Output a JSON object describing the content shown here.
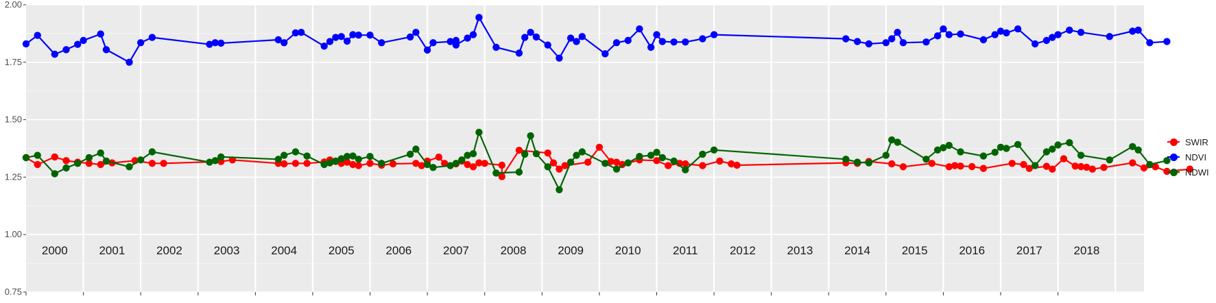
{
  "colors": {
    "panel": "#ebebeb",
    "grid_major": "#ffffff",
    "grid_minor": "#f5f5f5",
    "tick": "#333333"
  },
  "chart_data": {
    "type": "line",
    "ylim": [
      0.75,
      2.0
    ],
    "y_ticks": [
      "0.75",
      "1.00",
      "1.25",
      "1.50",
      "1.75",
      "2.00"
    ],
    "y_tick_values": [
      0.75,
      1.0,
      1.25,
      1.5,
      1.75,
      2.0
    ],
    "xlim": [
      1999.5,
      2019.0
    ],
    "x_labels": [
      "2000",
      "2001",
      "2002",
      "2003",
      "2004",
      "2005",
      "2006",
      "2007",
      "2008",
      "2009",
      "2010",
      "2011",
      "2012",
      "2013",
      "2014",
      "2015",
      "2016",
      "2017",
      "2018"
    ],
    "grid": true,
    "legend_position": "right",
    "series": [
      {
        "name": "SWIR",
        "color": "#ff0000",
        "points": [
          [
            1999.5,
            1.335
          ],
          [
            1999.7,
            1.305
          ],
          [
            2000.0,
            1.338
          ],
          [
            2000.2,
            1.322
          ],
          [
            2000.4,
            1.315
          ],
          [
            2000.6,
            1.31
          ],
          [
            2000.8,
            1.305
          ],
          [
            2001.0,
            1.312
          ],
          [
            2001.4,
            1.322
          ],
          [
            2001.7,
            1.31
          ],
          [
            2001.9,
            1.31
          ],
          [
            2002.9,
            1.318
          ],
          [
            2003.1,
            1.325
          ],
          [
            2003.9,
            1.31
          ],
          [
            2004.0,
            1.308
          ],
          [
            2004.2,
            1.31
          ],
          [
            2004.4,
            1.31
          ],
          [
            2004.7,
            1.316
          ],
          [
            2004.8,
            1.325
          ],
          [
            2004.9,
            1.318
          ],
          [
            2005.0,
            1.31
          ],
          [
            2005.1,
            1.315
          ],
          [
            2005.2,
            1.305
          ],
          [
            2005.3,
            1.3
          ],
          [
            2005.5,
            1.31
          ],
          [
            2005.7,
            1.302
          ],
          [
            2005.9,
            1.308
          ],
          [
            2006.3,
            1.31
          ],
          [
            2006.4,
            1.3
          ],
          [
            2006.5,
            1.32
          ],
          [
            2006.7,
            1.337
          ],
          [
            2006.8,
            1.31
          ],
          [
            2007.0,
            1.308
          ],
          [
            2007.1,
            1.32
          ],
          [
            2007.2,
            1.305
          ],
          [
            2007.3,
            1.295
          ],
          [
            2007.4,
            1.312
          ],
          [
            2007.5,
            1.31
          ],
          [
            2007.8,
            1.302
          ],
          [
            2007.8,
            1.252
          ],
          [
            2008.1,
            1.367
          ],
          [
            2008.6,
            1.355
          ],
          [
            2008.7,
            1.312
          ],
          [
            2008.8,
            1.285
          ],
          [
            2008.9,
            1.3
          ],
          [
            2009.3,
            1.315
          ],
          [
            2009.5,
            1.38
          ],
          [
            2009.7,
            1.318
          ],
          [
            2009.8,
            1.315
          ],
          [
            2009.9,
            1.305
          ],
          [
            2010.2,
            1.325
          ],
          [
            2010.5,
            1.322
          ],
          [
            2010.7,
            1.3
          ],
          [
            2010.9,
            1.31
          ],
          [
            2011.0,
            1.308
          ],
          [
            2011.3,
            1.3
          ],
          [
            2011.6,
            1.32
          ],
          [
            2011.8,
            1.308
          ],
          [
            2011.9,
            1.302
          ],
          [
            2013.8,
            1.312
          ],
          [
            2014.0,
            1.31
          ],
          [
            2014.2,
            1.318
          ],
          [
            2014.6,
            1.308
          ],
          [
            2014.8,
            1.295
          ],
          [
            2015.3,
            1.31
          ],
          [
            2015.6,
            1.295
          ],
          [
            2015.7,
            1.3
          ],
          [
            2015.8,
            1.298
          ],
          [
            2016.0,
            1.296
          ],
          [
            2016.2,
            1.288
          ],
          [
            2016.7,
            1.31
          ],
          [
            2016.9,
            1.305
          ],
          [
            2017.0,
            1.288
          ],
          [
            2017.3,
            1.297
          ],
          [
            2017.4,
            1.285
          ],
          [
            2017.6,
            1.33
          ],
          [
            2017.8,
            1.298
          ],
          [
            2017.9,
            1.296
          ],
          [
            2018.0,
            1.293
          ],
          [
            2018.1,
            1.285
          ],
          [
            2018.3,
            1.292
          ],
          [
            2018.8,
            1.312
          ],
          [
            2019.0,
            1.29
          ],
          [
            2019.2,
            1.295
          ],
          [
            2019.4,
            1.275
          ],
          [
            2019.8,
            1.285
          ]
        ]
      },
      {
        "name": "NDVI",
        "color": "#0000ff",
        "points": [
          [
            1999.5,
            1.83
          ],
          [
            1999.7,
            1.867
          ],
          [
            2000.0,
            1.785
          ],
          [
            2000.2,
            1.805
          ],
          [
            2000.4,
            1.828
          ],
          [
            2000.5,
            1.845
          ],
          [
            2000.8,
            1.873
          ],
          [
            2000.9,
            1.805
          ],
          [
            2001.3,
            1.75
          ],
          [
            2001.5,
            1.835
          ],
          [
            2001.7,
            1.858
          ],
          [
            2002.7,
            1.828
          ],
          [
            2002.8,
            1.835
          ],
          [
            2002.9,
            1.833
          ],
          [
            2003.9,
            1.848
          ],
          [
            2004.0,
            1.835
          ],
          [
            2004.2,
            1.878
          ],
          [
            2004.3,
            1.88
          ],
          [
            2004.7,
            1.82
          ],
          [
            2004.8,
            1.84
          ],
          [
            2004.9,
            1.858
          ],
          [
            2005.0,
            1.862
          ],
          [
            2005.1,
            1.842
          ],
          [
            2005.2,
            1.87
          ],
          [
            2005.3,
            1.868
          ],
          [
            2005.5,
            1.868
          ],
          [
            2005.7,
            1.835
          ],
          [
            2006.2,
            1.86
          ],
          [
            2006.3,
            1.88
          ],
          [
            2006.5,
            1.803
          ],
          [
            2006.6,
            1.835
          ],
          [
            2006.9,
            1.84
          ],
          [
            2007.0,
            1.845
          ],
          [
            2007.0,
            1.825
          ],
          [
            2007.2,
            1.855
          ],
          [
            2007.3,
            1.87
          ],
          [
            2007.4,
            1.945
          ],
          [
            2007.7,
            1.815
          ],
          [
            2008.1,
            1.79
          ],
          [
            2008.2,
            1.858
          ],
          [
            2008.3,
            1.88
          ],
          [
            2008.4,
            1.86
          ],
          [
            2008.6,
            1.825
          ],
          [
            2008.8,
            1.768
          ],
          [
            2009.0,
            1.855
          ],
          [
            2009.1,
            1.84
          ],
          [
            2009.2,
            1.862
          ],
          [
            2009.6,
            1.787
          ],
          [
            2009.8,
            1.835
          ],
          [
            2010.0,
            1.845
          ],
          [
            2010.2,
            1.895
          ],
          [
            2010.4,
            1.815
          ],
          [
            2010.5,
            1.87
          ],
          [
            2010.6,
            1.84
          ],
          [
            2010.8,
            1.838
          ],
          [
            2011.0,
            1.838
          ],
          [
            2011.3,
            1.852
          ],
          [
            2011.5,
            1.87
          ],
          [
            2013.8,
            1.852
          ],
          [
            2014.0,
            1.84
          ],
          [
            2014.2,
            1.83
          ],
          [
            2014.5,
            1.835
          ],
          [
            2014.6,
            1.852
          ],
          [
            2014.7,
            1.88
          ],
          [
            2014.8,
            1.835
          ],
          [
            2015.2,
            1.838
          ],
          [
            2015.4,
            1.865
          ],
          [
            2015.5,
            1.895
          ],
          [
            2015.6,
            1.87
          ],
          [
            2015.8,
            1.873
          ],
          [
            2016.2,
            1.848
          ],
          [
            2016.4,
            1.87
          ],
          [
            2016.5,
            1.885
          ],
          [
            2016.6,
            1.878
          ],
          [
            2016.8,
            1.895
          ],
          [
            2017.1,
            1.83
          ],
          [
            2017.3,
            1.845
          ],
          [
            2017.4,
            1.858
          ],
          [
            2017.5,
            1.87
          ],
          [
            2017.7,
            1.89
          ],
          [
            2017.9,
            1.88
          ],
          [
            2018.4,
            1.862
          ],
          [
            2018.8,
            1.885
          ],
          [
            2018.9,
            1.89
          ],
          [
            2019.1,
            1.835
          ],
          [
            2019.4,
            1.84
          ]
        ]
      },
      {
        "name": "NDWI",
        "color": "#006400",
        "points": [
          [
            1999.5,
            1.335
          ],
          [
            1999.7,
            1.345
          ],
          [
            2000.0,
            1.265
          ],
          [
            2000.2,
            1.29
          ],
          [
            2000.4,
            1.31
          ],
          [
            2000.6,
            1.335
          ],
          [
            2000.8,
            1.355
          ],
          [
            2000.9,
            1.32
          ],
          [
            2001.3,
            1.295
          ],
          [
            2001.5,
            1.325
          ],
          [
            2001.7,
            1.36
          ],
          [
            2002.7,
            1.315
          ],
          [
            2002.8,
            1.322
          ],
          [
            2002.9,
            1.338
          ],
          [
            2003.9,
            1.328
          ],
          [
            2004.0,
            1.345
          ],
          [
            2004.2,
            1.36
          ],
          [
            2004.4,
            1.342
          ],
          [
            2004.7,
            1.305
          ],
          [
            2004.8,
            1.312
          ],
          [
            2004.9,
            1.32
          ],
          [
            2005.0,
            1.33
          ],
          [
            2005.1,
            1.34
          ],
          [
            2005.2,
            1.342
          ],
          [
            2005.3,
            1.328
          ],
          [
            2005.5,
            1.34
          ],
          [
            2005.7,
            1.31
          ],
          [
            2006.2,
            1.35
          ],
          [
            2006.3,
            1.372
          ],
          [
            2006.5,
            1.305
          ],
          [
            2006.6,
            1.292
          ],
          [
            2006.9,
            1.3
          ],
          [
            2007.0,
            1.31
          ],
          [
            2007.1,
            1.325
          ],
          [
            2007.2,
            1.345
          ],
          [
            2007.3,
            1.352
          ],
          [
            2007.4,
            1.445
          ],
          [
            2007.7,
            1.268
          ],
          [
            2008.1,
            1.272
          ],
          [
            2008.2,
            1.35
          ],
          [
            2008.3,
            1.43
          ],
          [
            2008.4,
            1.352
          ],
          [
            2008.6,
            1.295
          ],
          [
            2008.8,
            1.195
          ],
          [
            2009.0,
            1.315
          ],
          [
            2009.1,
            1.345
          ],
          [
            2009.2,
            1.36
          ],
          [
            2009.6,
            1.31
          ],
          [
            2009.8,
            1.285
          ],
          [
            2010.0,
            1.312
          ],
          [
            2010.2,
            1.34
          ],
          [
            2010.4,
            1.345
          ],
          [
            2010.5,
            1.358
          ],
          [
            2010.6,
            1.335
          ],
          [
            2010.8,
            1.32
          ],
          [
            2011.0,
            1.282
          ],
          [
            2011.3,
            1.35
          ],
          [
            2011.5,
            1.368
          ],
          [
            2013.8,
            1.328
          ],
          [
            2014.0,
            1.315
          ],
          [
            2014.2,
            1.312
          ],
          [
            2014.5,
            1.345
          ],
          [
            2014.6,
            1.412
          ],
          [
            2014.7,
            1.402
          ],
          [
            2015.2,
            1.328
          ],
          [
            2015.4,
            1.368
          ],
          [
            2015.5,
            1.378
          ],
          [
            2015.6,
            1.388
          ],
          [
            2015.8,
            1.36
          ],
          [
            2016.2,
            1.342
          ],
          [
            2016.4,
            1.358
          ],
          [
            2016.5,
            1.38
          ],
          [
            2016.6,
            1.375
          ],
          [
            2016.8,
            1.392
          ],
          [
            2017.1,
            1.3
          ],
          [
            2017.3,
            1.36
          ],
          [
            2017.4,
            1.372
          ],
          [
            2017.5,
            1.39
          ],
          [
            2017.7,
            1.4
          ],
          [
            2017.9,
            1.345
          ],
          [
            2018.4,
            1.325
          ],
          [
            2018.8,
            1.383
          ],
          [
            2018.9,
            1.368
          ],
          [
            2019.1,
            1.305
          ],
          [
            2019.4,
            1.322
          ]
        ]
      }
    ]
  }
}
